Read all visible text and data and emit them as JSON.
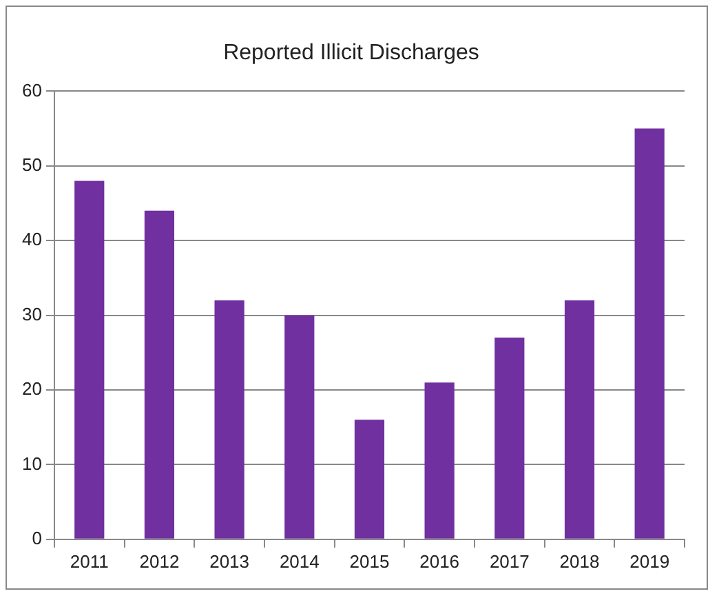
{
  "chart_data": {
    "type": "bar",
    "title": "Reported Illicit Discharges",
    "categories": [
      "2011",
      "2012",
      "2013",
      "2014",
      "2015",
      "2016",
      "2017",
      "2018",
      "2019"
    ],
    "values": [
      48,
      44,
      32,
      30,
      16,
      21,
      27,
      32,
      55
    ],
    "color": "#7030a0",
    "ylim": [
      0,
      60
    ],
    "yticks": [
      0,
      10,
      20,
      30,
      40,
      50,
      60
    ],
    "grid": "y",
    "legend": false
  }
}
